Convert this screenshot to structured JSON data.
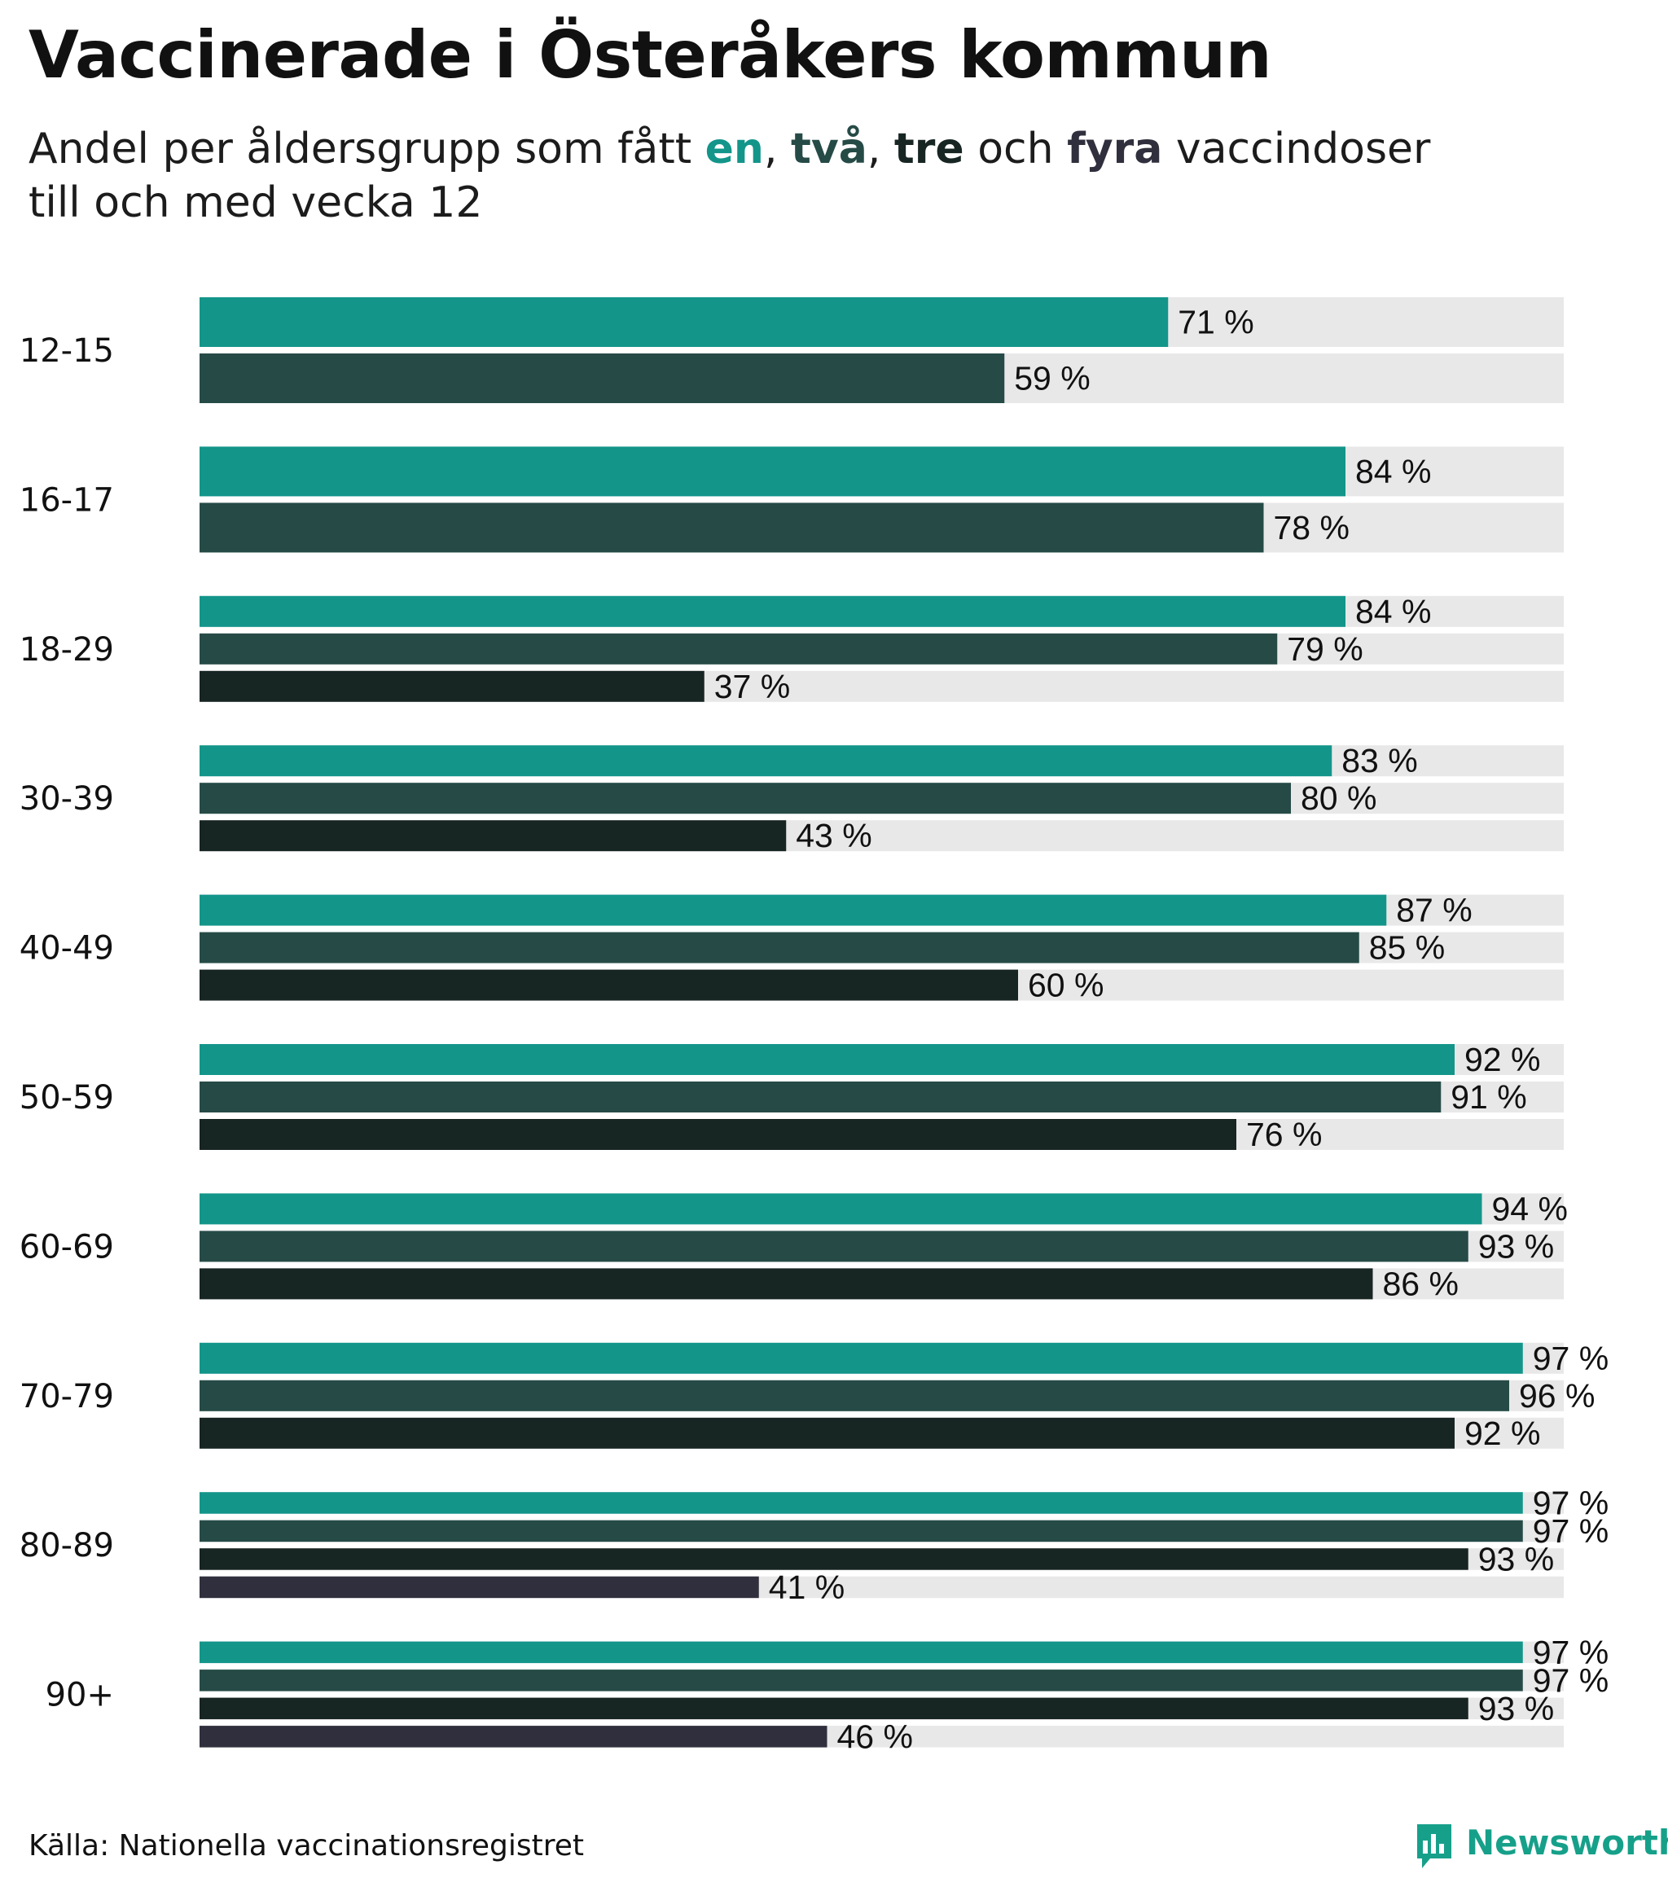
{
  "title": "Vaccinerade i Österåkers kommun",
  "subtitle": {
    "prefix": "Andel per åldersgrupp som fått ",
    "dose1": "en",
    "sep1": ", ",
    "dose2": "två",
    "sep2": ", ",
    "dose3": "tre",
    "conj": " och ",
    "dose4": "fyra",
    "suffix": " vaccindoser",
    "line2": "till och med vecka 12"
  },
  "colors": {
    "dose1": "#13958a",
    "dose2": "#264b47",
    "dose3": "#172523",
    "dose4": "#302f3d",
    "track": "#e8e8e8"
  },
  "source": "Källa: Nationella vaccinationsregistret",
  "brand": {
    "name": "Newsworthy",
    "icon": "bar-chart-speech-bubble-icon"
  },
  "chart_data": {
    "type": "bar",
    "orientation": "horizontal",
    "unit": "%",
    "xlim": [
      0,
      100
    ],
    "categories": [
      "12-15",
      "16-17",
      "18-29",
      "30-39",
      "40-49",
      "50-59",
      "60-69",
      "70-79",
      "80-89",
      "90+"
    ],
    "series": [
      {
        "name": "en",
        "values": [
          71,
          84,
          84,
          83,
          87,
          92,
          94,
          97,
          97,
          97
        ]
      },
      {
        "name": "två",
        "values": [
          59,
          78,
          79,
          80,
          85,
          91,
          93,
          96,
          97,
          97
        ]
      },
      {
        "name": "tre",
        "values": [
          null,
          null,
          37,
          43,
          60,
          76,
          86,
          92,
          93,
          93
        ]
      },
      {
        "name": "fyra",
        "values": [
          null,
          null,
          null,
          null,
          null,
          null,
          null,
          null,
          41,
          46
        ]
      }
    ],
    "labels": [
      [
        "71 %",
        "59 %"
      ],
      [
        "84 %",
        "78 %"
      ],
      [
        "84 %",
        "79 %",
        "37 %"
      ],
      [
        "83 %",
        "80 %",
        "43 %"
      ],
      [
        "87 %",
        "85 %",
        "60 %"
      ],
      [
        "92 %",
        "91 %",
        "76 %"
      ],
      [
        "94 %",
        "93 %",
        "86 %"
      ],
      [
        "97 %",
        "96 %",
        "92 %"
      ],
      [
        "97 %",
        "97 %",
        "93 %",
        "41 %"
      ],
      [
        "97 %",
        "97 %",
        "93 %",
        "46 %"
      ]
    ]
  }
}
